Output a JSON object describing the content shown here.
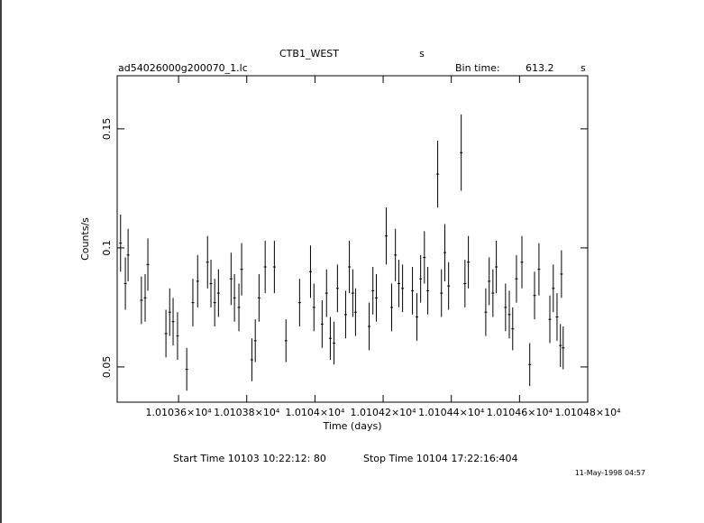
{
  "chart_data": {
    "type": "errorbar",
    "title": "CTB1_WEST",
    "title_unit": "s",
    "subtitle": "ad54026000g200070_1.lc",
    "bin_time_label": "Bin time:",
    "bin_time": 613.2,
    "bin_time_unit": "s",
    "x_label": "Time (days)",
    "y_label": "Counts/s",
    "color": "#000000",
    "xlim": [
      10103.42,
      10104.8
    ],
    "ylim": [
      0.0352,
      0.1723
    ],
    "xticks": [
      {
        "value": 10103.6,
        "label": "1.01036×10⁴"
      },
      {
        "value": 10103.8,
        "label": "1.01038×10⁴"
      },
      {
        "value": 10104.0,
        "label": "1.0104×10⁴"
      },
      {
        "value": 10104.2,
        "label": "1.01042×10⁴"
      },
      {
        "value": 10104.4,
        "label": "1.01044×10⁴"
      },
      {
        "value": 10104.6,
        "label": "1.01046×10⁴"
      },
      {
        "value": 10104.8,
        "label": "1.01048×10⁴"
      }
    ],
    "yticks": [
      0.05,
      0.1,
      0.15
    ],
    "x": [
      10103.43,
      10103.444,
      10103.452,
      10103.491,
      10103.502,
      10103.51,
      10103.563,
      10103.574,
      10103.584,
      10103.597,
      10103.624,
      10103.642,
      10103.656,
      10103.685,
      10103.695,
      10103.706,
      10103.717,
      10103.754,
      10103.764,
      10103.777,
      10103.785,
      10103.815,
      10103.825,
      10103.836,
      10103.854,
      10103.881,
      10103.915,
      10103.955,
      10103.987,
      10103.997,
      10104.021,
      10104.034,
      10104.045,
      10104.056,
      10104.066,
      10104.09,
      10104.101,
      10104.111,
      10104.119,
      10104.159,
      10104.17,
      10104.18,
      10104.209,
      10104.225,
      10104.236,
      10104.246,
      10104.257,
      10104.286,
      10104.299,
      10104.31,
      10104.321,
      10104.331,
      10104.36,
      10104.371,
      10104.381,
      10104.392,
      10104.429,
      10104.44,
      10104.45,
      10104.501,
      10104.511,
      10104.522,
      10104.532,
      10104.559,
      10104.57,
      10104.58,
      10104.591,
      10104.607,
      10104.63,
      10104.644,
      10104.657,
      10104.689,
      10104.699,
      10104.71,
      10104.72,
      10104.723,
      10104.728
    ],
    "values": [
      0.102,
      0.085,
      0.097,
      0.078,
      0.079,
      0.093,
      0.064,
      0.073,
      0.069,
      0.063,
      0.049,
      0.077,
      0.086,
      0.094,
      0.085,
      0.077,
      0.081,
      0.087,
      0.079,
      0.075,
      0.091,
      0.053,
      0.061,
      0.079,
      0.092,
      0.092,
      0.061,
      0.077,
      0.09,
      0.075,
      0.068,
      0.081,
      0.062,
      0.06,
      0.083,
      0.072,
      0.092,
      0.081,
      0.073,
      0.067,
      0.082,
      0.079,
      0.105,
      0.075,
      0.097,
      0.085,
      0.083,
      0.082,
      0.071,
      0.087,
      0.096,
      0.082,
      0.131,
      0.081,
      0.098,
      0.084,
      0.14,
      0.085,
      0.094,
      0.073,
      0.086,
      0.081,
      0.092,
      0.075,
      0.072,
      0.066,
      0.087,
      0.094,
      0.051,
      0.08,
      0.091,
      0.07,
      0.083,
      0.071,
      0.059,
      0.089,
      0.058
    ],
    "errors": [
      0.012,
      0.011,
      0.011,
      0.01,
      0.01,
      0.011,
      0.01,
      0.01,
      0.01,
      0.01,
      0.009,
      0.01,
      0.011,
      0.011,
      0.01,
      0.01,
      0.01,
      0.011,
      0.01,
      0.01,
      0.011,
      0.009,
      0.009,
      0.01,
      0.011,
      0.011,
      0.009,
      0.01,
      0.011,
      0.01,
      0.01,
      0.01,
      0.009,
      0.009,
      0.01,
      0.01,
      0.011,
      0.01,
      0.01,
      0.01,
      0.01,
      0.01,
      0.012,
      0.01,
      0.011,
      0.01,
      0.01,
      0.01,
      0.01,
      0.01,
      0.011,
      0.01,
      0.014,
      0.01,
      0.012,
      0.01,
      0.016,
      0.01,
      0.011,
      0.01,
      0.01,
      0.01,
      0.011,
      0.01,
      0.01,
      0.009,
      0.01,
      0.011,
      0.009,
      0.01,
      0.011,
      0.01,
      0.01,
      0.01,
      0.009,
      0.01,
      0.009
    ]
  },
  "footer": {
    "start_time": "Start Time 10103 10:22:12: 80",
    "stop_time": "Stop Time 10104 17:22:16:404",
    "date": "11-May-1998 04:57"
  }
}
